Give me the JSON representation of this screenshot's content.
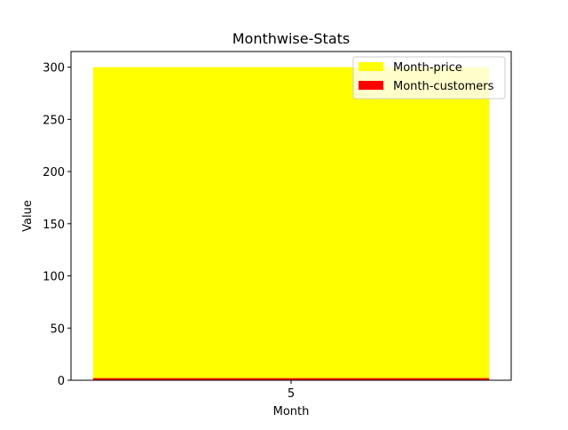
{
  "chart_data": {
    "type": "bar",
    "title": "Monthwise-Stats",
    "xlabel": "Month",
    "ylabel": "Value",
    "categories": [
      "5"
    ],
    "series": [
      {
        "name": "Month-price",
        "values": [
          300
        ],
        "color": "#ffff00"
      },
      {
        "name": "Month-customers",
        "values": [
          2
        ],
        "color": "#ff0000"
      }
    ],
    "ylim": [
      0,
      315
    ],
    "yticks": [
      0,
      50,
      100,
      150,
      200,
      250,
      300
    ],
    "grid": false,
    "legend_position": "top-right"
  }
}
